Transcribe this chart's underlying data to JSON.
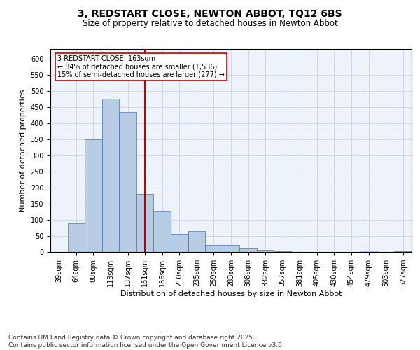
{
  "title_line1": "3, REDSTART CLOSE, NEWTON ABBOT, TQ12 6BS",
  "title_line2": "Size of property relative to detached houses in Newton Abbot",
  "xlabel": "Distribution of detached houses by size in Newton Abbot",
  "ylabel": "Number of detached properties",
  "categories": [
    "39sqm",
    "64sqm",
    "88sqm",
    "113sqm",
    "137sqm",
    "161sqm",
    "186sqm",
    "210sqm",
    "235sqm",
    "259sqm",
    "283sqm",
    "308sqm",
    "332sqm",
    "357sqm",
    "381sqm",
    "405sqm",
    "430sqm",
    "454sqm",
    "479sqm",
    "503sqm",
    "527sqm"
  ],
  "values": [
    0,
    90,
    350,
    475,
    435,
    180,
    125,
    57,
    65,
    22,
    22,
    10,
    7,
    2,
    1,
    1,
    1,
    0,
    4,
    0,
    2
  ],
  "bar_color": "#b8cce4",
  "bar_edge_color": "#4472c4",
  "grid_color": "#c8d4e8",
  "bg_color": "#eef2f9",
  "vline_x": 5,
  "vline_color": "#c00000",
  "annotation_text": "3 REDSTART CLOSE: 163sqm\n← 84% of detached houses are smaller (1,536)\n15% of semi-detached houses are larger (277) →",
  "annotation_box_color": "#ffffff",
  "annotation_box_edge": "#c00000",
  "ylim": [
    0,
    630
  ],
  "yticks": [
    0,
    50,
    100,
    150,
    200,
    250,
    300,
    350,
    400,
    450,
    500,
    550,
    600
  ],
  "footer": "Contains HM Land Registry data © Crown copyright and database right 2025.\nContains public sector information licensed under the Open Government Licence v3.0.",
  "title_fontsize": 10,
  "subtitle_fontsize": 8.5,
  "axis_label_fontsize": 8,
  "tick_fontsize": 7,
  "annotation_fontsize": 7,
  "footer_fontsize": 6.5
}
